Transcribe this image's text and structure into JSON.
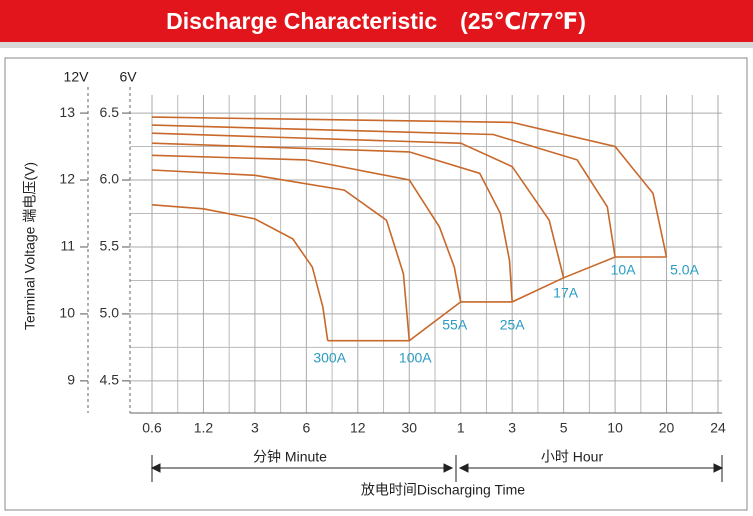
{
  "chart_data": {
    "type": "line",
    "title": "Discharge Characteristic　(25℃/77℉)",
    "y_label": "Terminal Voltage 端电压(V)",
    "y_header": "12V",
    "y2_header": "6V",
    "x_label": "放电时间Discharging Time",
    "x_group_minute": "分钟 Minute",
    "x_group_hour": "小时 Hour",
    "line_color": "#c8682a",
    "grid": true,
    "xscale": "log",
    "xlim": [
      0.6,
      1440
    ],
    "xticks": [
      0.6,
      1.2,
      3,
      6,
      12,
      30,
      {
        "value": 60,
        "label": "1"
      },
      {
        "value": 180,
        "label": "3"
      },
      {
        "value": 300,
        "label": "5"
      },
      {
        "value": 600,
        "label": "10"
      },
      {
        "value": 1200,
        "label": "20"
      },
      {
        "value": 1440,
        "label": "24"
      }
    ],
    "ylim": [
      8.52,
      13.27
    ],
    "yticks": [
      13,
      12,
      11,
      10,
      9
    ],
    "y2lim": [
      4.26,
      6.635
    ],
    "y2ticks": [
      6.5,
      {
        "value": 6,
        "label": "6.0"
      },
      5.5,
      {
        "value": 5,
        "label": "5.0"
      },
      4.5
    ],
    "series": [
      {
        "name": "300A",
        "x": [
          0.6,
          1.2,
          3,
          5,
          6.5,
          7.5,
          8
        ],
        "values": [
          11.63,
          11.57,
          11.42,
          11.12,
          10.7,
          10.1,
          9.6
        ]
      },
      {
        "name": "100A",
        "x": [
          0.6,
          3,
          10,
          20,
          27,
          30
        ],
        "values": [
          12.15,
          12.07,
          11.85,
          11.4,
          10.6,
          9.6
        ]
      },
      {
        "name": "55A",
        "x": [
          0.6,
          6,
          30,
          45,
          55,
          60
        ],
        "values": [
          12.37,
          12.3,
          12.0,
          11.3,
          10.7,
          10.18
        ]
      },
      {
        "name": "25A",
        "x": [
          0.6,
          30,
          90,
          140,
          170,
          180
        ],
        "values": [
          12.55,
          12.42,
          12.1,
          11.5,
          10.8,
          10.18
        ]
      },
      {
        "name": "17A",
        "x": [
          0.6,
          60,
          180,
          260,
          300
        ],
        "values": [
          12.7,
          12.55,
          12.2,
          11.4,
          10.54
        ]
      },
      {
        "name": "10A",
        "x": [
          0.6,
          120,
          360,
          540,
          600
        ],
        "values": [
          12.82,
          12.68,
          12.3,
          11.6,
          10.85
        ]
      },
      {
        "name": "5.0A",
        "x": [
          0.6,
          180,
          600,
          1000,
          1200
        ],
        "values": [
          12.94,
          12.86,
          12.5,
          11.8,
          10.85
        ]
      }
    ],
    "cutoff": {
      "x": [
        8,
        30,
        60,
        180,
        300,
        600,
        1200
      ],
      "values": [
        9.6,
        9.6,
        10.18,
        10.18,
        10.54,
        10.85,
        10.85
      ]
    }
  }
}
